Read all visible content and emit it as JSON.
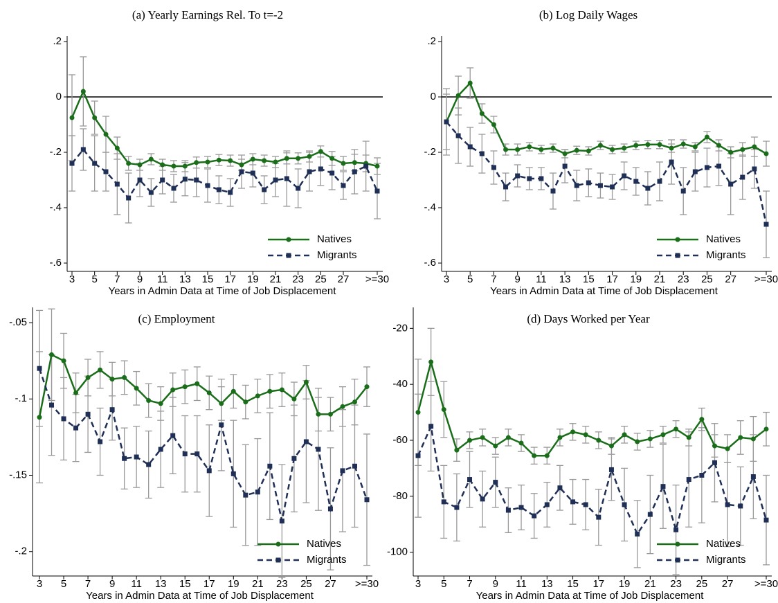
{
  "chart_data": [
    {
      "type": "line",
      "title": "(a) Yearly Earnings Rel. To t=-2",
      "xlabel": "Years in Admin Data at Time of Job Displacement",
      "categories": [
        "3",
        null,
        "5",
        null,
        "7",
        null,
        "9",
        null,
        "11",
        null,
        "13",
        null,
        "15",
        null,
        "17",
        null,
        "19",
        null,
        "21",
        null,
        "23",
        null,
        "25",
        null,
        "27",
        null,
        null,
        ">=30"
      ],
      "ylim": [
        -0.63,
        0.22
      ],
      "yticks": [
        {
          "value": 0.2,
          "label": ".2"
        },
        0,
        {
          "value": -0.2,
          "label": "-.2"
        },
        {
          "value": -0.4,
          "label": "-.4"
        },
        {
          "value": -0.6,
          "label": "-.6"
        }
      ],
      "hline": 0,
      "legend": "lower right",
      "series": [
        {
          "name": "Natives",
          "color": "#1a6e1a",
          "marker": "circle",
          "dash": false,
          "values": [
            -0.075,
            0.02,
            -0.075,
            -0.135,
            -0.185,
            -0.24,
            -0.245,
            -0.225,
            -0.245,
            -0.25,
            -0.25,
            -0.237,
            -0.235,
            -0.228,
            -0.23,
            -0.245,
            -0.225,
            -0.23,
            -0.235,
            -0.222,
            -0.222,
            -0.215,
            -0.197,
            -0.222,
            -0.24,
            -0.237,
            -0.24,
            -0.25
          ],
          "errors": [
            0.155,
            0.125,
            0.06,
            0.065,
            0.04,
            0.025,
            0.02,
            0.02,
            0.02,
            0.02,
            0.02,
            0.02,
            0.02,
            0.02,
            0.02,
            0.02,
            0.02,
            0.02,
            0.02,
            0.02,
            0.02,
            0.02,
            0.02,
            0.025,
            0.025,
            0.03,
            0.03,
            0.03
          ]
        },
        {
          "name": "Migrants",
          "color": "#1f2f55",
          "marker": "square",
          "dash": true,
          "values": [
            -0.24,
            -0.19,
            -0.24,
            -0.27,
            -0.315,
            -0.365,
            -0.3,
            -0.345,
            -0.3,
            -0.33,
            -0.297,
            -0.3,
            -0.32,
            -0.335,
            -0.345,
            -0.27,
            -0.275,
            -0.335,
            -0.3,
            -0.295,
            -0.33,
            -0.27,
            -0.26,
            -0.275,
            -0.32,
            -0.27,
            -0.25,
            -0.34
          ],
          "errors": [
            0.1,
            0.075,
            0.1,
            0.07,
            0.11,
            0.09,
            0.06,
            0.05,
            0.05,
            0.05,
            0.06,
            0.06,
            0.06,
            0.05,
            0.05,
            0.06,
            0.05,
            0.05,
            0.06,
            0.1,
            0.07,
            0.07,
            0.06,
            0.06,
            0.05,
            0.08,
            0.09,
            0.1
          ]
        }
      ]
    },
    {
      "type": "line",
      "title": "(b) Log Daily Wages",
      "xlabel": "Years in Admin Data at Time of Job Displacement",
      "categories": [
        "3",
        null,
        "5",
        null,
        "7",
        null,
        "9",
        null,
        "11",
        null,
        "13",
        null,
        "15",
        null,
        "17",
        null,
        "19",
        null,
        "21",
        null,
        "23",
        null,
        "25",
        null,
        "27",
        null,
        null,
        ">=30"
      ],
      "ylim": [
        -0.63,
        0.22
      ],
      "yticks": [
        {
          "value": 0.2,
          "label": ".2"
        },
        0,
        {
          "value": -0.2,
          "label": "-.2"
        },
        {
          "value": -0.4,
          "label": "-.4"
        },
        {
          "value": -0.6,
          "label": "-.6"
        }
      ],
      "hline": 0,
      "legend": "lower right",
      "series": [
        {
          "name": "Natives",
          "color": "#1a6e1a",
          "marker": "circle",
          "dash": false,
          "values": [
            -0.09,
            0.005,
            0.05,
            -0.06,
            -0.1,
            -0.19,
            -0.19,
            -0.18,
            -0.19,
            -0.185,
            -0.205,
            -0.193,
            -0.195,
            -0.175,
            -0.19,
            -0.185,
            -0.175,
            -0.172,
            -0.172,
            -0.185,
            -0.17,
            -0.18,
            -0.145,
            -0.175,
            -0.2,
            -0.19,
            -0.18,
            -0.205
          ],
          "errors": [
            0.1,
            0.07,
            0.055,
            0.035,
            0.03,
            0.02,
            0.02,
            0.015,
            0.015,
            0.015,
            0.015,
            0.015,
            0.015,
            0.015,
            0.015,
            0.015,
            0.015,
            0.015,
            0.015,
            0.015,
            0.015,
            0.015,
            0.02,
            0.02,
            0.02,
            0.025,
            0.035,
            0.045
          ]
        },
        {
          "name": "Migrants",
          "color": "#1f2f55",
          "marker": "square",
          "dash": true,
          "values": [
            -0.09,
            -0.14,
            -0.18,
            -0.205,
            -0.255,
            -0.325,
            -0.285,
            -0.295,
            -0.295,
            -0.34,
            -0.25,
            -0.32,
            -0.31,
            -0.32,
            -0.325,
            -0.285,
            -0.305,
            -0.33,
            -0.305,
            -0.235,
            -0.34,
            -0.27,
            -0.255,
            -0.25,
            -0.315,
            -0.29,
            -0.26,
            -0.46
          ],
          "errors": [
            0.12,
            0.1,
            0.07,
            0.07,
            0.06,
            0.05,
            0.04,
            0.04,
            0.04,
            0.065,
            0.06,
            0.055,
            0.05,
            0.045,
            0.045,
            0.05,
            0.05,
            0.06,
            0.07,
            0.08,
            0.085,
            0.07,
            0.07,
            0.07,
            0.11,
            0.08,
            0.07,
            0.12
          ]
        }
      ]
    },
    {
      "type": "line",
      "title": "(c) Employment",
      "xlabel": "Years in Admin Data at Time of Job Displacement",
      "categories": [
        "3",
        null,
        "5",
        null,
        "7",
        null,
        "9",
        null,
        "11",
        null,
        "13",
        null,
        "15",
        null,
        "17",
        null,
        "19",
        null,
        "21",
        null,
        "23",
        null,
        "25",
        null,
        "27",
        null,
        null,
        ">=30"
      ],
      "ylim": [
        -0.216,
        -0.04
      ],
      "yticks": [
        {
          "value": -0.05,
          "label": "-.05"
        },
        {
          "value": -0.1,
          "label": "-.1"
        },
        {
          "value": -0.15,
          "label": "-.15"
        },
        {
          "value": -0.2,
          "label": "-.2"
        }
      ],
      "legend": "lower right",
      "series": [
        {
          "name": "Natives",
          "color": "#1a6e1a",
          "marker": "circle",
          "dash": false,
          "values": [
            -0.112,
            -0.071,
            -0.075,
            -0.096,
            -0.086,
            -0.081,
            -0.087,
            -0.086,
            -0.093,
            -0.101,
            -0.103,
            -0.094,
            -0.092,
            -0.09,
            -0.096,
            -0.103,
            -0.095,
            -0.102,
            -0.098,
            -0.095,
            -0.094,
            -0.1,
            -0.089,
            -0.11,
            -0.11,
            -0.105,
            -0.102,
            -0.092
          ],
          "errors": [
            0.043,
            0.03,
            0.018,
            0.013,
            0.012,
            0.012,
            0.011,
            0.011,
            0.011,
            0.011,
            0.011,
            0.011,
            0.011,
            0.011,
            0.011,
            0.011,
            0.011,
            0.011,
            0.011,
            0.011,
            0.011,
            0.011,
            0.011,
            0.011,
            0.011,
            0.013,
            0.015,
            0.013
          ]
        },
        {
          "name": "Migrants",
          "color": "#1f2f55",
          "marker": "square",
          "dash": true,
          "values": [
            -0.08,
            -0.104,
            -0.113,
            -0.119,
            -0.11,
            -0.128,
            -0.107,
            -0.139,
            -0.138,
            -0.143,
            -0.133,
            -0.124,
            -0.136,
            -0.136,
            -0.147,
            -0.117,
            -0.149,
            -0.163,
            -0.161,
            -0.144,
            -0.18,
            -0.139,
            -0.128,
            -0.133,
            -0.172,
            -0.147,
            -0.144,
            -0.166
          ],
          "errors": [
            0.038,
            0.033,
            0.027,
            0.022,
            0.025,
            0.022,
            0.02,
            0.02,
            0.02,
            0.022,
            0.025,
            0.025,
            0.025,
            0.025,
            0.03,
            0.03,
            0.035,
            0.033,
            0.035,
            0.035,
            0.037,
            0.035,
            0.04,
            0.04,
            0.04,
            0.04,
            0.04,
            0.043
          ]
        }
      ]
    },
    {
      "type": "line",
      "title": "(d) Days Worked per Year",
      "xlabel": "Years in Admin Data at Time of Job Displacement",
      "categories": [
        "3",
        null,
        "5",
        null,
        "7",
        null,
        "9",
        null,
        "11",
        null,
        "13",
        null,
        "15",
        null,
        "17",
        null,
        "19",
        null,
        "21",
        null,
        "23",
        null,
        "25",
        null,
        "27",
        null,
        null,
        ">=30"
      ],
      "ylim": [
        -108.5,
        -12.5
      ],
      "yticks": [
        -20,
        -40,
        -60,
        -80,
        -100
      ],
      "legend": "lower right",
      "series": [
        {
          "name": "Natives",
          "color": "#1a6e1a",
          "marker": "circle",
          "dash": false,
          "values": [
            -50,
            -32,
            -49,
            -63.5,
            -60,
            -59,
            -62,
            -59,
            -61,
            -65.5,
            -65.5,
            -59,
            -57,
            -58,
            -60,
            -62,
            -58,
            -60.5,
            -59.5,
            -58,
            -56,
            -59,
            -52.5,
            -62,
            -63,
            -59,
            -59.5,
            -56
          ],
          "errors": [
            19,
            12,
            10,
            4,
            3,
            3,
            3,
            3,
            3,
            3,
            3,
            3,
            3,
            3,
            3,
            3,
            3,
            3,
            3,
            3,
            3,
            3,
            4,
            4,
            5,
            6,
            8,
            6
          ]
        },
        {
          "name": "Migrants",
          "color": "#1f2f55",
          "marker": "square",
          "dash": true,
          "values": [
            -65.5,
            -55,
            -82,
            -84,
            -74,
            -81,
            -75,
            -85,
            -84,
            -87,
            -83,
            -77,
            -82,
            -83,
            -87.5,
            -70.5,
            -83,
            -93.5,
            -86.5,
            -76.5,
            -92,
            -74,
            -72.5,
            -68,
            -83,
            -83.5,
            -73,
            -88.5
          ],
          "errors": [
            22,
            16,
            13,
            12,
            10,
            10,
            9,
            8,
            8,
            8,
            8,
            8,
            8,
            9,
            10,
            11,
            13,
            12,
            14,
            15,
            16,
            17,
            17,
            14,
            15,
            14,
            15,
            16
          ]
        }
      ]
    }
  ]
}
